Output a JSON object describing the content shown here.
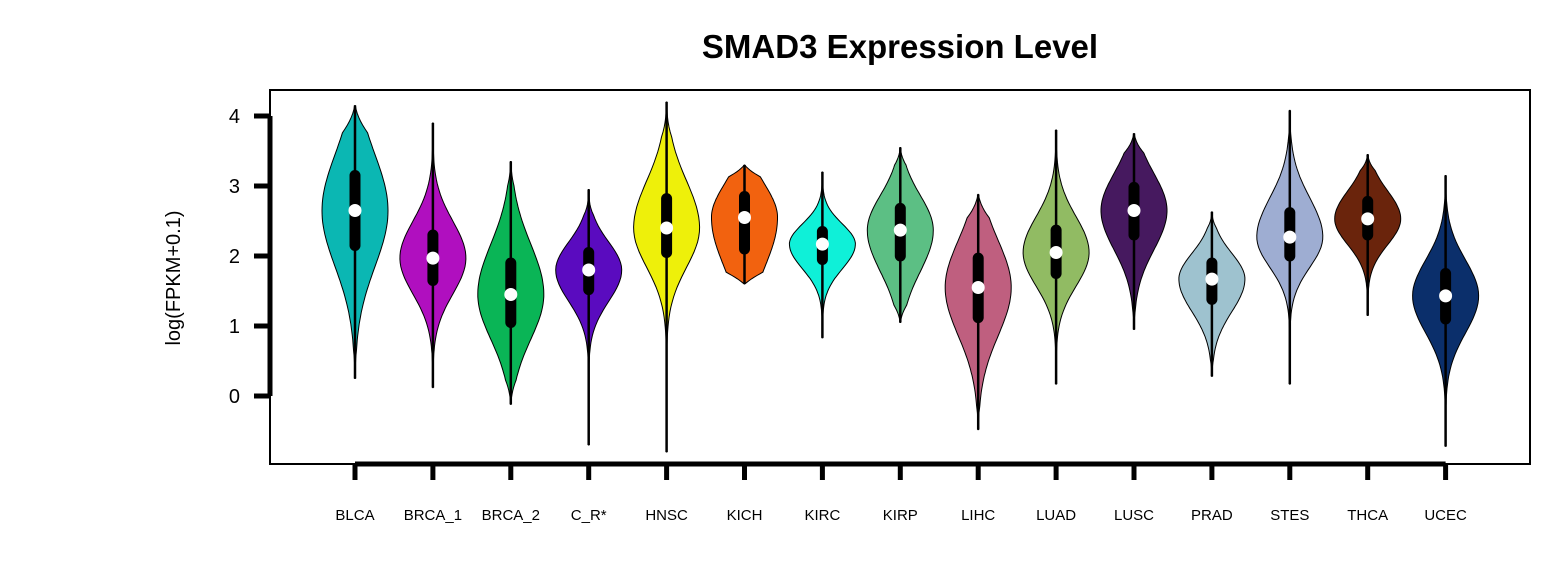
{
  "chart_data": {
    "type": "violin",
    "title": "SMAD3 Expression Level",
    "xlabel": "",
    "ylabel": "log(FPKM+0.1)",
    "ylim": [
      -1,
      4.4
    ],
    "yticks": [
      0,
      1,
      2,
      3,
      4
    ],
    "grid": false,
    "legend": "none",
    "categories": [
      "BLCA",
      "BRCA_1",
      "BRCA_2",
      "C_R*",
      "HNSC",
      "KICH",
      "KIRC",
      "KIRP",
      "LIHC",
      "LUAD",
      "LUSC",
      "PRAD",
      "STES",
      "THCA",
      "UCEC"
    ],
    "series": [
      {
        "category": "BLCA",
        "color": "#0bb7b3",
        "min": 0.25,
        "q1": 2.15,
        "median": 2.65,
        "q3": 3.15,
        "max": 4.15,
        "whisker_low": 0.95,
        "whisker_high": 4.15
      },
      {
        "category": "BRCA_1",
        "color": "#b00fbf",
        "min": 0.12,
        "q1": 1.65,
        "median": 1.97,
        "q3": 2.3,
        "max": 3.9,
        "whisker_low": 0.5,
        "whisker_high": 3.5
      },
      {
        "category": "BRCA_2",
        "color": "#0ab556",
        "min": -0.12,
        "q1": 1.05,
        "median": 1.45,
        "q3": 1.9,
        "max": 3.35,
        "whisker_low": 0.1,
        "whisker_high": 3.0
      },
      {
        "category": "C_R*",
        "color": "#5a0bbf",
        "min": -0.7,
        "q1": 1.52,
        "median": 1.8,
        "q3": 2.05,
        "max": 2.95,
        "whisker_low": 0.35,
        "whisker_high": 2.95
      },
      {
        "category": "HNSC",
        "color": "#eef00a",
        "min": -0.8,
        "q1": 2.05,
        "median": 2.4,
        "q3": 2.82,
        "max": 4.2,
        "whisker_low": 0.9,
        "whisker_high": 3.8
      },
      {
        "category": "KICH",
        "color": "#f2620f",
        "min": 1.6,
        "q1": 2.1,
        "median": 2.55,
        "q3": 2.85,
        "max": 3.3,
        "whisker_low": 1.6,
        "whisker_high": 3.3
      },
      {
        "category": "KIRC",
        "color": "#0ff0d8",
        "min": 0.83,
        "q1": 1.95,
        "median": 2.17,
        "q3": 2.35,
        "max": 3.2,
        "whisker_low": 1.3,
        "whisker_high": 2.95
      },
      {
        "category": "KIRP",
        "color": "#5cbf84",
        "min": 1.05,
        "q1": 2.0,
        "median": 2.37,
        "q3": 2.68,
        "max": 3.55,
        "whisker_low": 1.1,
        "whisker_high": 3.5
      },
      {
        "category": "LIHC",
        "color": "#bf5f7f",
        "min": -0.48,
        "q1": 1.12,
        "median": 1.55,
        "q3": 1.97,
        "max": 2.88,
        "whisker_low": 0.05,
        "whisker_high": 2.88
      },
      {
        "category": "LUAD",
        "color": "#91bb63",
        "min": 0.17,
        "q1": 1.75,
        "median": 2.05,
        "q3": 2.37,
        "max": 3.8,
        "whisker_low": 0.9,
        "whisker_high": 3.3
      },
      {
        "category": "LUSC",
        "color": "#46195f",
        "min": 0.95,
        "q1": 2.3,
        "median": 2.65,
        "q3": 2.98,
        "max": 3.75,
        "whisker_low": 1.25,
        "whisker_high": 3.75
      },
      {
        "category": "PRAD",
        "color": "#9ec2cf",
        "min": 0.28,
        "q1": 1.38,
        "median": 1.67,
        "q3": 1.9,
        "max": 2.63,
        "whisker_low": 0.6,
        "whisker_high": 2.5
      },
      {
        "category": "STES",
        "color": "#9eadd2",
        "min": 0.17,
        "q1": 2.0,
        "median": 2.27,
        "q3": 2.62,
        "max": 4.08,
        "whisker_low": 1.05,
        "whisker_high": 3.5
      },
      {
        "category": "THCA",
        "color": "#6a240c",
        "min": 1.15,
        "q1": 2.3,
        "median": 2.53,
        "q3": 2.78,
        "max": 3.45,
        "whisker_low": 1.6,
        "whisker_high": 3.45
      },
      {
        "category": "UCEC",
        "color": "#0b2f6b",
        "min": -0.72,
        "q1": 1.1,
        "median": 1.43,
        "q3": 1.75,
        "max": 3.15,
        "whisker_low": -0.2,
        "whisker_high": 3.15
      }
    ]
  }
}
